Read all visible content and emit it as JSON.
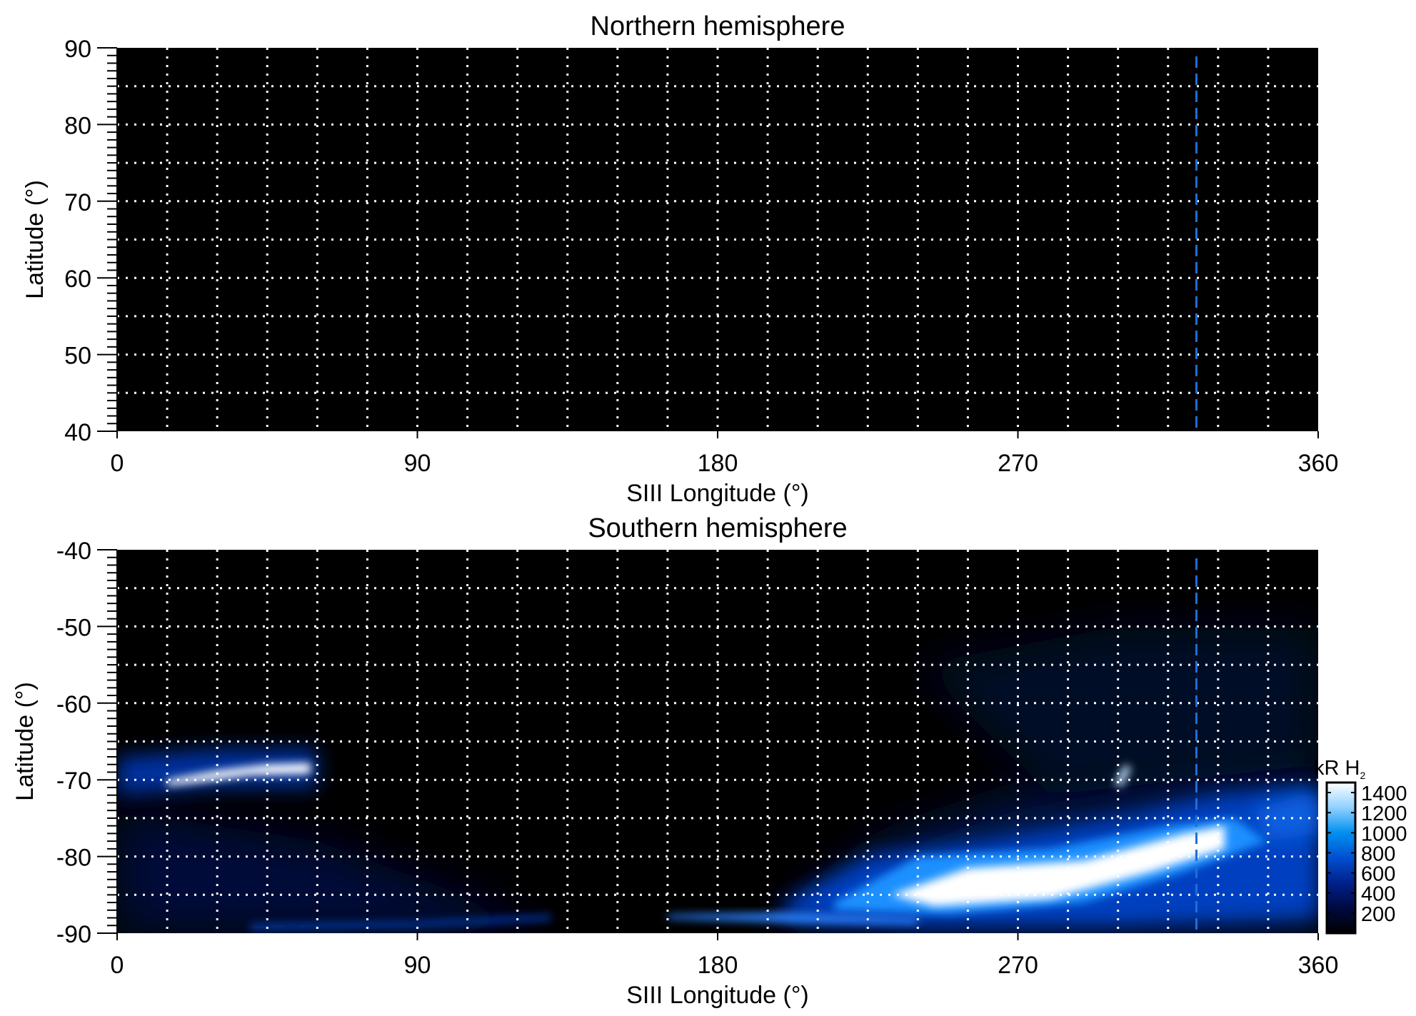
{
  "chart_data": [
    {
      "type": "heatmap",
      "title": "Northern hemisphere",
      "xlabel": "SIII Longitude (°)",
      "ylabel": "Latitude (°)",
      "xlim": [
        0,
        360
      ],
      "ylim": [
        40,
        90
      ],
      "xticks": [
        "0",
        "90",
        "180",
        "270",
        "360"
      ],
      "yticks": [
        "90",
        "80",
        "70",
        "60",
        "50",
        "40"
      ],
      "grid": true,
      "grid_x_step": 15,
      "grid_y_step": 5,
      "reference_line_longitude": 323.5,
      "reference_line_color": "#1e6fd9",
      "emission": "none"
    },
    {
      "type": "heatmap",
      "title": "Southern hemisphere",
      "xlabel": "SIII Longitude (°)",
      "ylabel": "Latitude (°)",
      "xlim": [
        0,
        360
      ],
      "ylim": [
        -90,
        -40
      ],
      "xticks": [
        "0",
        "90",
        "180",
        "270",
        "360"
      ],
      "yticks": [
        "-40",
        "-50",
        "-60",
        "-70",
        "-80",
        "-90"
      ],
      "grid": true,
      "grid_x_step": 15,
      "grid_y_step": 5,
      "reference_line_longitude": 323.5,
      "reference_line_color": "#1e6fd9",
      "colorbar": {
        "label": "kR H",
        "label_subscript": "2",
        "range": [
          0,
          1500
        ],
        "ticks": [
          "1400",
          "1200",
          "1000",
          "800",
          "600",
          "400",
          "200"
        ],
        "colors": [
          "#000000",
          "#000a40",
          "#00208a",
          "#0050d0",
          "#0090f0",
          "#90d0ff",
          "#ffffff"
        ]
      }
    }
  ]
}
